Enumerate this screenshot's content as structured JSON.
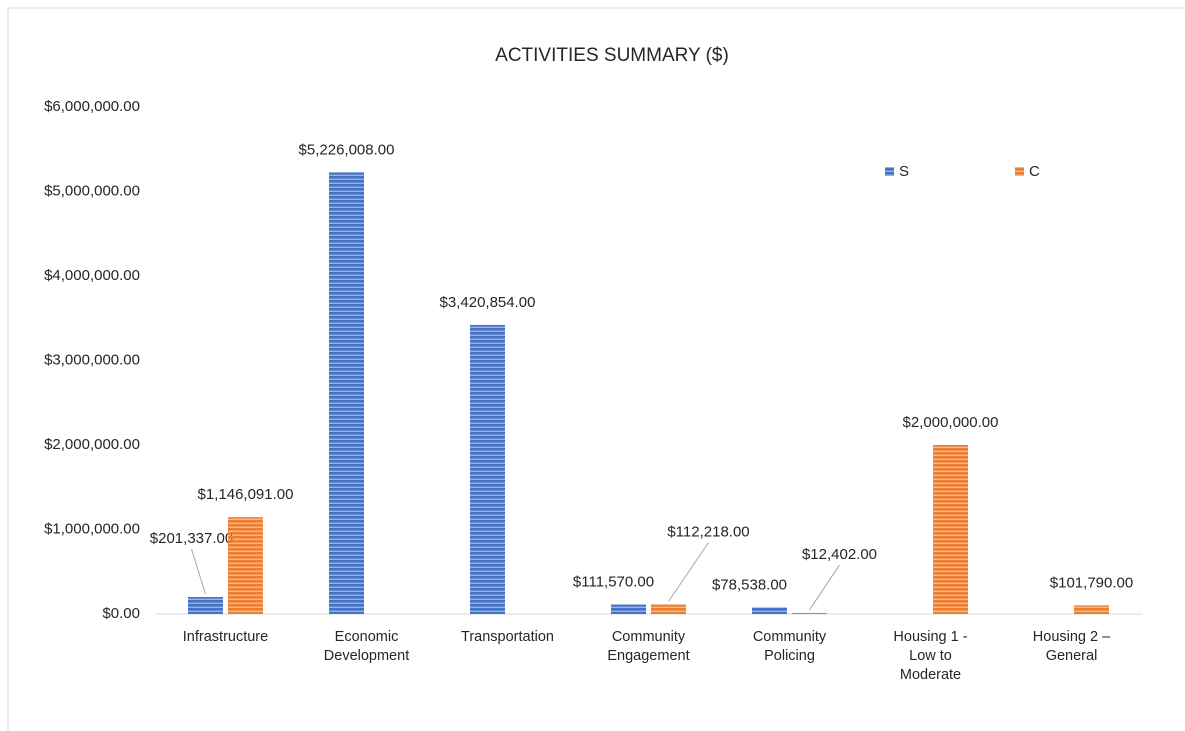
{
  "chart_data": {
    "type": "bar",
    "title": "ACTIVITIES SUMMARY ($)",
    "categories": [
      "Infrastructure",
      "Economic Development",
      "Transportation",
      "Community Engagement",
      "Community Policing",
      "Housing 1 - Low to Moderate",
      "Housing 2 – General"
    ],
    "series": [
      {
        "name": "S",
        "color": "#4472c4",
        "values": [
          201337,
          5226008,
          3420854,
          111570,
          78538,
          null,
          null
        ],
        "value_labels": [
          "$201,337.00",
          "$5,226,008.00",
          "$3,420,854.00",
          "$111,570.00",
          "$78,538.00",
          null,
          null
        ]
      },
      {
        "name": "C",
        "color": "#ed7d31",
        "values": [
          1146091,
          null,
          null,
          112218,
          12402,
          2000000,
          101790
        ],
        "value_labels": [
          "$1,146,091.00",
          null,
          null,
          "$112,218.00",
          "$12,402.00",
          "$2,000,000.00",
          "$101,790.00"
        ]
      }
    ],
    "ylim": [
      0,
      6000000
    ],
    "yticks": [
      {
        "value": 0,
        "label": "$0.00"
      },
      {
        "value": 1000000,
        "label": "$1,000,000.00"
      },
      {
        "value": 2000000,
        "label": "$2,000,000.00"
      },
      {
        "value": 3000000,
        "label": "$3,000,000.00"
      },
      {
        "value": 4000000,
        "label": "$4,000,000.00"
      },
      {
        "value": 5000000,
        "label": "$5,000,000.00"
      },
      {
        "value": 6000000,
        "label": "$6,000,000.00"
      }
    ],
    "grid": false,
    "legend": "upper right"
  }
}
